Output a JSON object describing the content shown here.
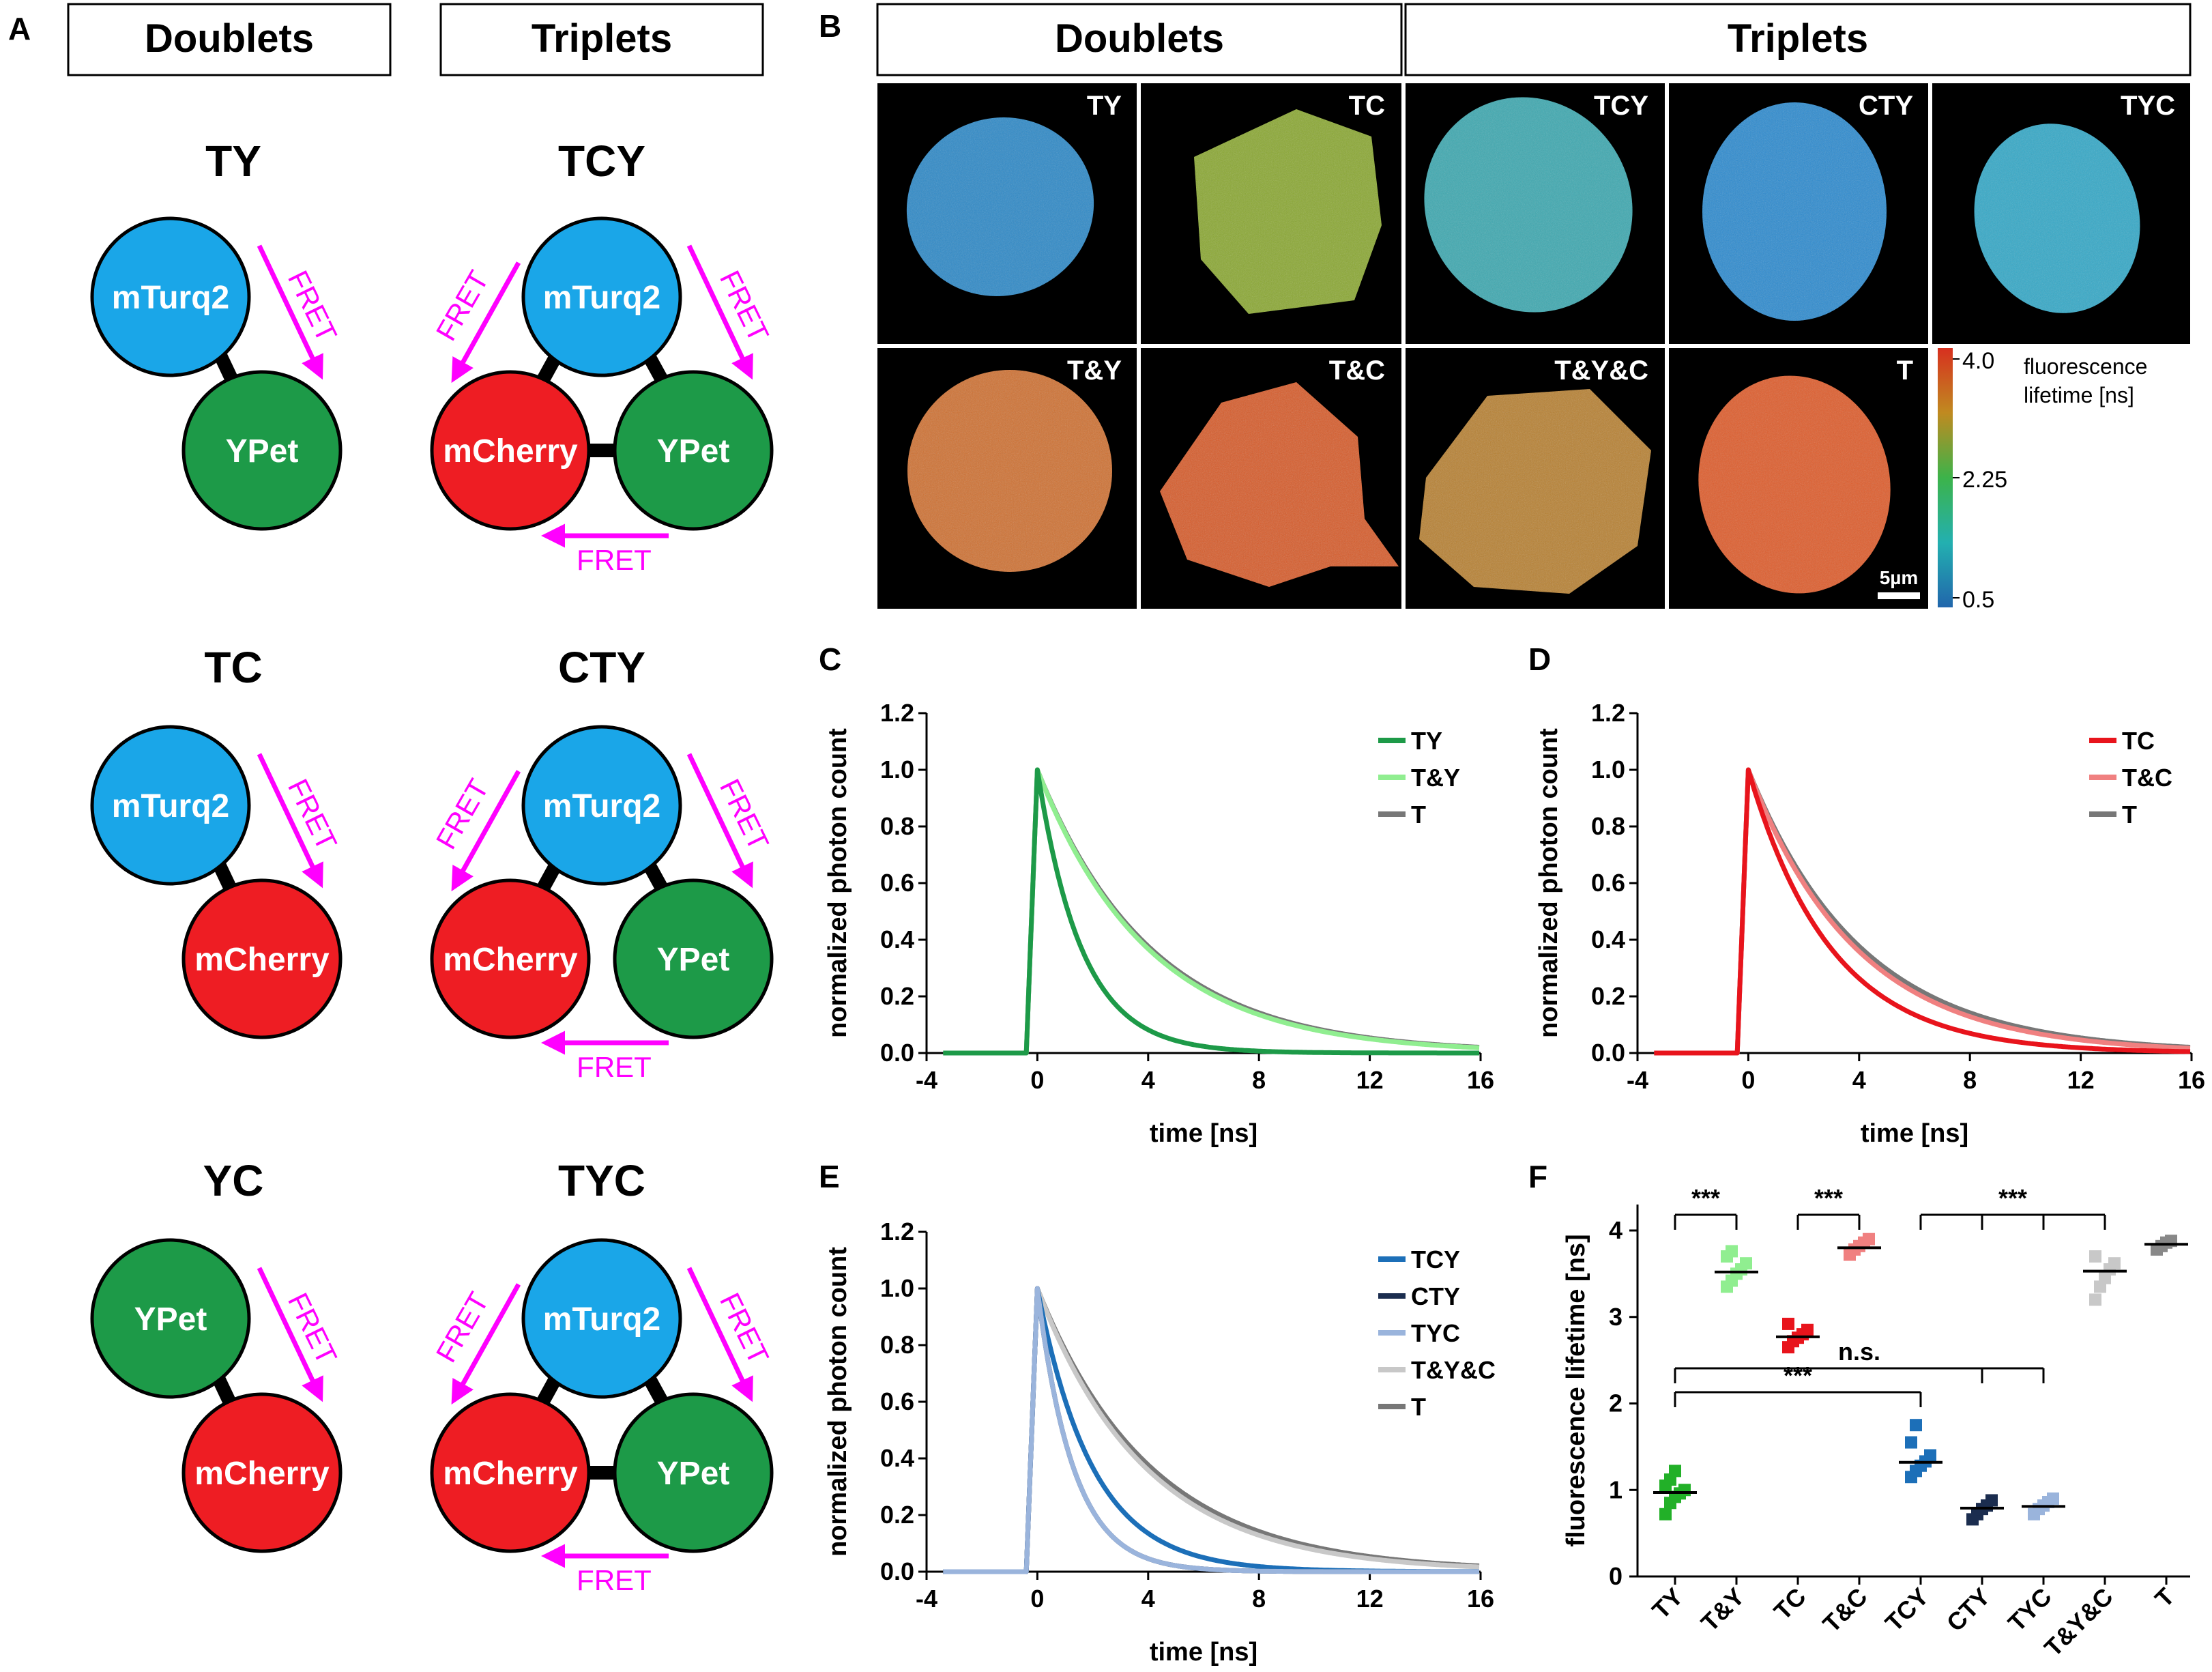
{
  "panel_letters": {
    "a": "A",
    "b": "B",
    "c": "C",
    "d": "D",
    "e": "E",
    "f": "F"
  },
  "colors": {
    "turq": "#1aa6e8",
    "ycolor": "#1d9a48",
    "cherry": "#ee1d23",
    "fret": "#ff00ff"
  },
  "panel_a": {
    "col_doublets": "Doublets",
    "col_triplets": "Triplets",
    "fret_label": "FRET",
    "constructs": [
      {
        "name": "TY",
        "nodes": [
          "mTurq2",
          "YPet"
        ]
      },
      {
        "name": "TCY",
        "nodes": [
          "mTurq2",
          "mCherry",
          "YPet"
        ]
      },
      {
        "name": "TC",
        "nodes": [
          "mTurq2",
          "mCherry"
        ]
      },
      {
        "name": "CTY",
        "nodes": [
          "mTurq2",
          "mCherry",
          "YPet"
        ]
      },
      {
        "name": "YC",
        "nodes": [
          "YPet",
          "mCherry"
        ]
      },
      {
        "name": "TYC",
        "nodes": [
          "mTurq2",
          "mCherry",
          "YPet"
        ]
      }
    ]
  },
  "panel_b": {
    "doublets_header": "Doublets",
    "triplets_header": "Triplets",
    "cells": [
      {
        "label": "TY",
        "color": "#2a88c8"
      },
      {
        "label": "TC",
        "color": "#8aa830"
      },
      {
        "label": "TCY",
        "color": "#3aa8b0"
      },
      {
        "label": "CTY",
        "color": "#2a8ad0"
      },
      {
        "label": "TYC",
        "color": "#30a8c8"
      },
      {
        "label": "T&Y",
        "color": "#d07030"
      },
      {
        "label": "T&C",
        "color": "#d85a28"
      },
      {
        "label": "T&Y&C",
        "color": "#b88030"
      },
      {
        "label": "T",
        "color": "#e05a28"
      }
    ],
    "scalebar": "5µm",
    "colorbar": {
      "ticks": [
        "4.0",
        "2.25",
        "0.5"
      ],
      "title_line1": "fluorescence",
      "title_line2": "lifetime  [ns]"
    }
  },
  "chart_data": [
    {
      "id": "C",
      "type": "line",
      "xlabel": "time [ns]",
      "ylabel": "normalized photon count",
      "xlim": [
        -4,
        16
      ],
      "ylim": [
        0,
        1.2
      ],
      "xticks": [
        "-4",
        "0",
        "4",
        "8",
        "12",
        "16"
      ],
      "yticks": [
        "0.0",
        "0.2",
        "0.4",
        "0.6",
        "0.8",
        "1.0",
        "1.2"
      ],
      "series": [
        {
          "name": "TY",
          "color": "#1d9a48",
          "tau": 1.6
        },
        {
          "name": "T&Y",
          "color": "#90ee90",
          "tau": 4.0
        },
        {
          "name": "T",
          "color": "#777777",
          "tau": 4.1
        }
      ]
    },
    {
      "id": "D",
      "type": "line",
      "xlabel": "time [ns]",
      "ylabel": "normalized photon count",
      "xlim": [
        -4,
        16
      ],
      "ylim": [
        0,
        1.2
      ],
      "xticks": [
        "-4",
        "0",
        "4",
        "8",
        "12",
        "16"
      ],
      "yticks": [
        "0.0",
        "0.2",
        "0.4",
        "0.6",
        "0.8",
        "1.0",
        "1.2"
      ],
      "series": [
        {
          "name": "TC",
          "color": "#e8141c",
          "tau": 3.0
        },
        {
          "name": "T&C",
          "color": "#f08080",
          "tau": 3.9
        },
        {
          "name": "T",
          "color": "#777777",
          "tau": 4.1
        }
      ]
    },
    {
      "id": "E",
      "type": "line",
      "xlabel": "time [ns]",
      "ylabel": "normalized photon count",
      "xlim": [
        -4,
        16
      ],
      "ylim": [
        0,
        1.2
      ],
      "xticks": [
        "-4",
        "0",
        "4",
        "8",
        "12",
        "16"
      ],
      "yticks": [
        "0.0",
        "0.2",
        "0.4",
        "0.6",
        "0.8",
        "1.0",
        "1.2"
      ],
      "series": [
        {
          "name": "TCY",
          "color": "#1c6fb8",
          "tau": 2.0
        },
        {
          "name": "CTY",
          "color": "#1b2d4f",
          "tau": 1.3
        },
        {
          "name": "TYC",
          "color": "#9ab4dc",
          "tau": 1.3
        },
        {
          "name": "T&Y&C",
          "color": "#c8c8c8",
          "tau": 3.9
        },
        {
          "name": "T",
          "color": "#777777",
          "tau": 4.1
        }
      ]
    },
    {
      "id": "F",
      "type": "scatter",
      "ylabel": "fluorescence lifetime [ns]",
      "ylim": [
        0,
        4.3
      ],
      "yticks": [
        "0",
        "1",
        "2",
        "3",
        "4"
      ],
      "categories": [
        "TY",
        "T&Y",
        "TC",
        "T&C",
        "TCY",
        "CTY",
        "TYC",
        "T&Y&C",
        "T"
      ],
      "means": [
        0.97,
        3.52,
        2.77,
        3.8,
        1.32,
        0.79,
        0.81,
        3.53,
        3.84
      ],
      "colors": [
        "#22b028",
        "#90ee90",
        "#e8141c",
        "#f08080",
        "#1c6fb8",
        "#1b2d4f",
        "#9ab4dc",
        "#c8c8c8",
        "#888888"
      ],
      "points": [
        [
          0.72,
          0.85,
          0.92,
          0.96,
          1.0,
          1.05,
          1.12,
          1.22
        ],
        [
          3.35,
          3.42,
          3.5,
          3.55,
          3.62,
          3.7,
          3.76
        ],
        [
          2.65,
          2.72,
          2.76,
          2.8,
          2.85,
          2.92
        ],
        [
          3.72,
          3.78,
          3.82,
          3.86,
          3.9
        ],
        [
          1.15,
          1.22,
          1.28,
          1.33,
          1.4,
          1.55,
          1.75
        ],
        [
          0.66,
          0.72,
          0.78,
          0.82,
          0.88
        ],
        [
          0.72,
          0.78,
          0.82,
          0.86,
          0.9
        ],
        [
          3.2,
          3.35,
          3.45,
          3.55,
          3.62,
          3.7
        ],
        [
          3.78,
          3.82,
          3.86,
          3.88
        ]
      ],
      "significance": {
        "star3": "***",
        "ns": "n.s."
      }
    }
  ]
}
